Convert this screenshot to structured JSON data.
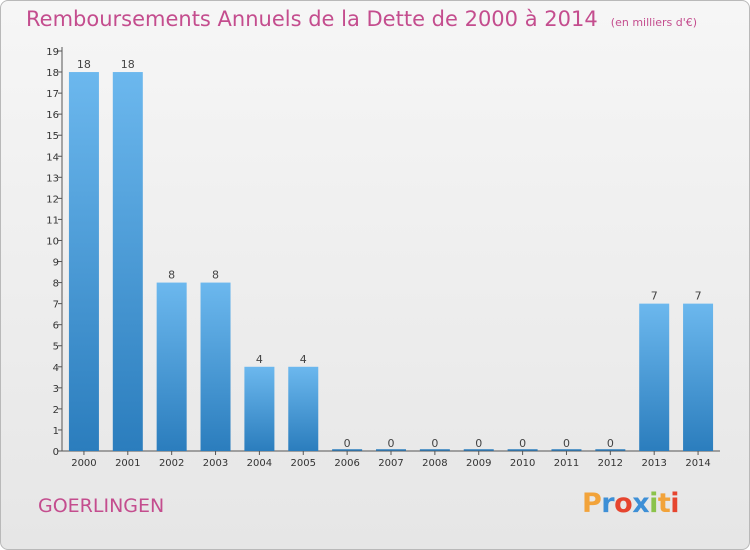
{
  "chart_data": {
    "type": "bar",
    "title": "Remboursements Annuels de la Dette de 2000 à 2014",
    "subtitle": "(en milliers d'€)",
    "categories": [
      "2000",
      "2001",
      "2002",
      "2003",
      "2004",
      "2005",
      "2006",
      "2007",
      "2008",
      "2009",
      "2010",
      "2011",
      "2012",
      "2013",
      "2014"
    ],
    "values": [
      18,
      18,
      8,
      8,
      4,
      4,
      0,
      0,
      0,
      0,
      0,
      0,
      0,
      7,
      7
    ],
    "value_labels": [
      "18",
      "18",
      "8",
      "8",
      "4",
      "4",
      "0",
      "0",
      "0",
      "0",
      "0",
      "0",
      "0",
      "7",
      "7"
    ],
    "ylim": [
      0,
      19
    ],
    "yticks": [
      "0",
      "1",
      "2",
      "3",
      "4",
      "5",
      "6",
      "7",
      "8",
      "9",
      "10",
      "11",
      "12",
      "13",
      "14",
      "15",
      "16",
      "17",
      "18",
      "19"
    ],
    "xlabel": "",
    "ylabel": "",
    "grid": false,
    "colors": {
      "bar_top": "#6cb8ee",
      "bar_bottom": "#2b7dbd",
      "text_accent": "#c44d8e"
    }
  },
  "footer": {
    "commune": "GOERLINGEN",
    "logo_letters": [
      "P",
      "r",
      "o",
      "x",
      "i",
      "t",
      "i"
    ],
    "logo_colors": [
      "#f2a33a",
      "#3d8fd6",
      "#e6452f",
      "#3d8fd6",
      "#8bc34a",
      "#f2a33a",
      "#e6452f"
    ]
  }
}
